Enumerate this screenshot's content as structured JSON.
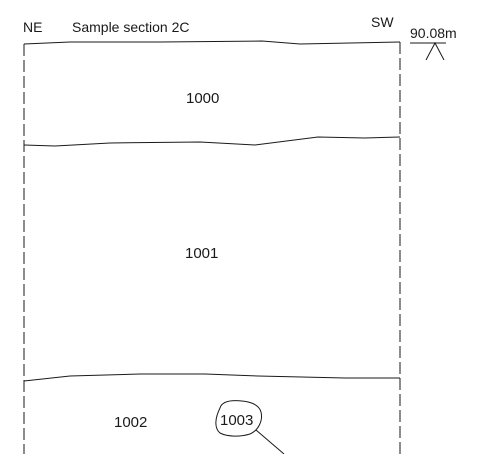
{
  "section": {
    "left_orientation": "NE",
    "right_orientation": "SW",
    "title": "Sample section 2C",
    "datum_level": "90.08m"
  },
  "contexts": [
    {
      "id": "1000"
    },
    {
      "id": "1001"
    },
    {
      "id": "1002"
    },
    {
      "id": "1003"
    }
  ]
}
